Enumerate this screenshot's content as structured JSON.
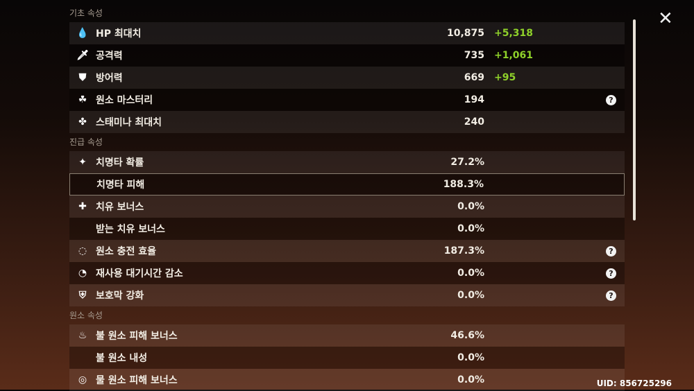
{
  "sections": [
    {
      "title": "기초 속성",
      "rows": [
        {
          "icon": "hp-drop-icon",
          "glyph": "💧",
          "label": "HP 최대치",
          "value": "10,875",
          "bonus": "+5,318"
        },
        {
          "icon": "sword-icon",
          "glyph": "🗡",
          "label": "공격력",
          "value": "735",
          "bonus": "+1,061"
        },
        {
          "icon": "shield-icon",
          "glyph": "⛊",
          "label": "방어력",
          "value": "669",
          "bonus": "+95"
        },
        {
          "icon": "elemental-mastery-icon",
          "glyph": "☘",
          "label": "원소 마스터리",
          "value": "194",
          "help": "?"
        },
        {
          "icon": "stamina-icon",
          "glyph": "✤",
          "label": "스태미나 최대치",
          "value": "240"
        }
      ]
    },
    {
      "title": "진급 속성",
      "rows": [
        {
          "icon": "crit-rate-icon",
          "glyph": "✦",
          "label": "치명타 확률",
          "value": "27.2%"
        },
        {
          "icon": "",
          "glyph": "",
          "label": "치명타 피해",
          "value": "188.3%",
          "selected": true
        },
        {
          "icon": "healing-cross-icon",
          "glyph": "✚",
          "label": "치유 보너스",
          "value": "0.0%"
        },
        {
          "icon": "",
          "glyph": "",
          "label": "받는 치유 보너스",
          "value": "0.0%"
        },
        {
          "icon": "energy-recharge-icon",
          "glyph": "◌",
          "label": "원소 충전 효율",
          "value": "187.3%",
          "help": "?"
        },
        {
          "icon": "cooldown-icon",
          "glyph": "◔",
          "label": "재사용 대기시간 감소",
          "value": "0.0%",
          "help": "?"
        },
        {
          "icon": "shield-strength-icon",
          "glyph": "⛨",
          "label": "보호막 강화",
          "value": "0.0%",
          "help": "?"
        }
      ]
    },
    {
      "title": "원소 속성",
      "rows": [
        {
          "icon": "pyro-icon",
          "glyph": "♨",
          "label": "불 원소 피해 보너스",
          "value": "46.6%"
        },
        {
          "icon": "",
          "glyph": "",
          "label": "불 원소 내성",
          "value": "0.0%"
        },
        {
          "icon": "hydro-icon",
          "glyph": "◎",
          "label": "물 원소 피해 보너스",
          "value": "0.0%"
        }
      ]
    }
  ],
  "close_glyph": "✕",
  "uid": "UID: 856725296"
}
